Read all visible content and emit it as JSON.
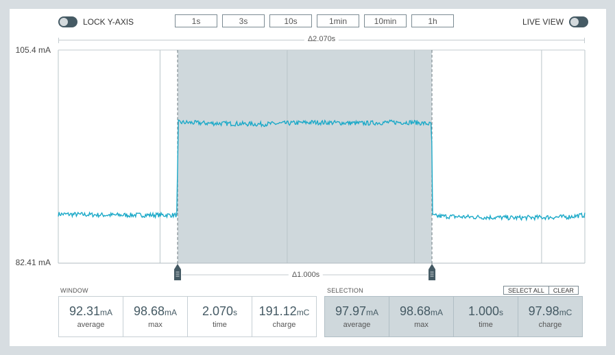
{
  "controls": {
    "lock_y_axis": {
      "label": "LOCK Y-AXIS",
      "on": false
    },
    "live_view": {
      "label": "LIVE VIEW",
      "on": false
    },
    "window_buttons": [
      "1s",
      "3s",
      "10s",
      "1min",
      "10min",
      "1h"
    ]
  },
  "chart_data": {
    "type": "line",
    "y_unit": "mA",
    "ylim": [
      82.41,
      105.4
    ],
    "y_tick_labels": [
      "105.4 mA",
      "82.41 mA"
    ],
    "x_range_seconds": [
      0,
      2.07
    ],
    "window_delta_label": "Δ2.070s",
    "selection_delta_label": "Δ1.000s",
    "selection_seconds": [
      0.469,
      1.469
    ],
    "grid": true,
    "series": [
      {
        "x": [
          0,
          0.2,
          0.4,
          0.468,
          0.47,
          0.6,
          0.8,
          1.0,
          1.2,
          1.3,
          1.4,
          1.468,
          1.47,
          1.6,
          1.8,
          2.0,
          2.07
        ],
        "values": [
          87.7,
          87.6,
          87.6,
          87.6,
          97.6,
          97.5,
          97.4,
          97.6,
          97.5,
          97.6,
          97.6,
          97.4,
          87.5,
          87.4,
          87.3,
          87.4,
          87.6
        ]
      }
    ]
  },
  "window_stats": {
    "title": "WINDOW",
    "items": [
      {
        "value": "92.31",
        "unit": "mA",
        "label": "average"
      },
      {
        "value": "98.68",
        "unit": "mA",
        "label": "max"
      },
      {
        "value": "2.070",
        "unit": "s",
        "label": "time"
      },
      {
        "value": "191.12",
        "unit": "mC",
        "label": "charge"
      }
    ]
  },
  "selection_stats": {
    "title": "SELECTION",
    "select_all": "SELECT ALL",
    "clear": "CLEAR",
    "items": [
      {
        "value": "97.97",
        "unit": "mA",
        "label": "average"
      },
      {
        "value": "98.68",
        "unit": "mA",
        "label": "max"
      },
      {
        "value": "1.000",
        "unit": "s",
        "label": "time"
      },
      {
        "value": "97.98",
        "unit": "mC",
        "label": "charge"
      }
    ]
  },
  "colors": {
    "trace": "#1ba9c8",
    "selection_fill": "#cfd8dc",
    "toggle": "#455a64",
    "background": "#d7dde1"
  }
}
